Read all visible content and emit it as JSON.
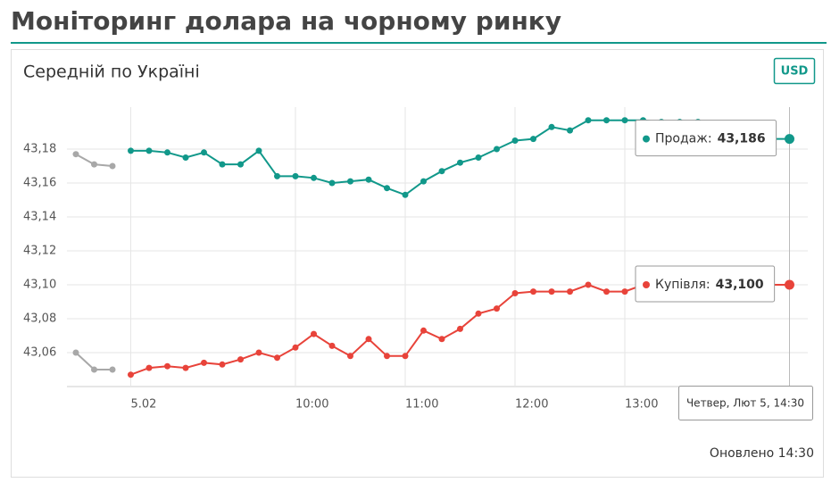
{
  "chart_data": {
    "type": "line",
    "title": "Моніторинг долара на чорному ринку",
    "subtitle": "Середній по Україні",
    "currency_badge": "USD",
    "crosshair_label": "Четвер, Лют 5, 14:30",
    "footer": "Оновлено 14:30",
    "categories": [
      null,
      null,
      null,
      "5.02",
      null,
      null,
      null,
      null,
      null,
      null,
      null,
      null,
      "10:00",
      null,
      null,
      null,
      null,
      null,
      "11:00",
      null,
      null,
      null,
      null,
      null,
      "12:00",
      null,
      null,
      null,
      null,
      null,
      "13:00",
      null,
      null,
      null,
      null,
      null,
      null,
      null,
      null,
      null
    ],
    "ylim": [
      43.04,
      43.2
    ],
    "yticks": [
      {
        "value": 43.06,
        "label": "43,06"
      },
      {
        "value": 43.08,
        "label": "43,08"
      },
      {
        "value": 43.1,
        "label": "43,10"
      },
      {
        "value": 43.12,
        "label": "43,12"
      },
      {
        "value": 43.14,
        "label": "43,14"
      },
      {
        "value": 43.16,
        "label": "43,16"
      },
      {
        "value": 43.18,
        "label": "43,18"
      }
    ],
    "grid": true,
    "series": [
      {
        "color": "#a8a8a8",
        "values": [
          43.177,
          43.171,
          43.17,
          null,
          null,
          null,
          null,
          null,
          null,
          null,
          null,
          null,
          null,
          null,
          null,
          null,
          null,
          null,
          null,
          null,
          null,
          null,
          null,
          null,
          null,
          null,
          null,
          null,
          null,
          null,
          null,
          null,
          null,
          null,
          null,
          null,
          null,
          null,
          null,
          null
        ]
      },
      {
        "name": "Продаж:",
        "color": "#11988a",
        "values": [
          null,
          null,
          null,
          43.179,
          43.179,
          43.178,
          43.175,
          43.178,
          43.171,
          43.171,
          43.179,
          43.164,
          43.164,
          43.163,
          43.16,
          43.161,
          43.162,
          43.157,
          43.153,
          43.161,
          43.167,
          43.172,
          43.175,
          43.18,
          43.185,
          43.186,
          43.193,
          43.191,
          43.197,
          43.197,
          43.197,
          43.197,
          43.196,
          43.196,
          43.196,
          43.195,
          43.192,
          43.189,
          43.186,
          43.186
        ],
        "value_labels": [
          null,
          null,
          null,
          null,
          null,
          null,
          null,
          null,
          null,
          null,
          null,
          null,
          null,
          null,
          null,
          null,
          null,
          null,
          null,
          null,
          null,
          null,
          null,
          null,
          null,
          null,
          null,
          null,
          null,
          null,
          null,
          null,
          null,
          null,
          null,
          null,
          null,
          null,
          null,
          "43,186"
        ]
      },
      {
        "color": "#a8a8a8",
        "values": [
          43.06,
          43.05,
          43.05,
          null,
          null,
          null,
          null,
          null,
          null,
          null,
          null,
          null,
          null,
          null,
          null,
          null,
          null,
          null,
          null,
          null,
          null,
          null,
          null,
          null,
          null,
          null,
          null,
          null,
          null,
          null,
          null,
          null,
          null,
          null,
          null,
          null,
          null,
          null,
          null,
          null
        ]
      },
      {
        "name": "Купівля:",
        "color": "#e8433a",
        "values": [
          null,
          null,
          null,
          43.047,
          43.051,
          43.052,
          43.051,
          43.054,
          43.053,
          43.056,
          43.06,
          43.057,
          43.063,
          43.071,
          43.064,
          43.058,
          43.068,
          43.058,
          43.058,
          43.073,
          43.068,
          43.074,
          43.083,
          43.086,
          43.095,
          43.096,
          43.096,
          43.096,
          43.1,
          43.096,
          43.096,
          43.1,
          43.1,
          43.1,
          43.1,
          43.1,
          43.1,
          43.1,
          43.1,
          43.1
        ],
        "value_labels": [
          null,
          null,
          null,
          null,
          null,
          null,
          null,
          null,
          null,
          null,
          null,
          null,
          null,
          null,
          null,
          null,
          null,
          null,
          null,
          null,
          null,
          null,
          null,
          null,
          null,
          null,
          null,
          null,
          null,
          null,
          null,
          null,
          null,
          null,
          null,
          null,
          null,
          null,
          null,
          "43,100"
        ]
      }
    ]
  }
}
